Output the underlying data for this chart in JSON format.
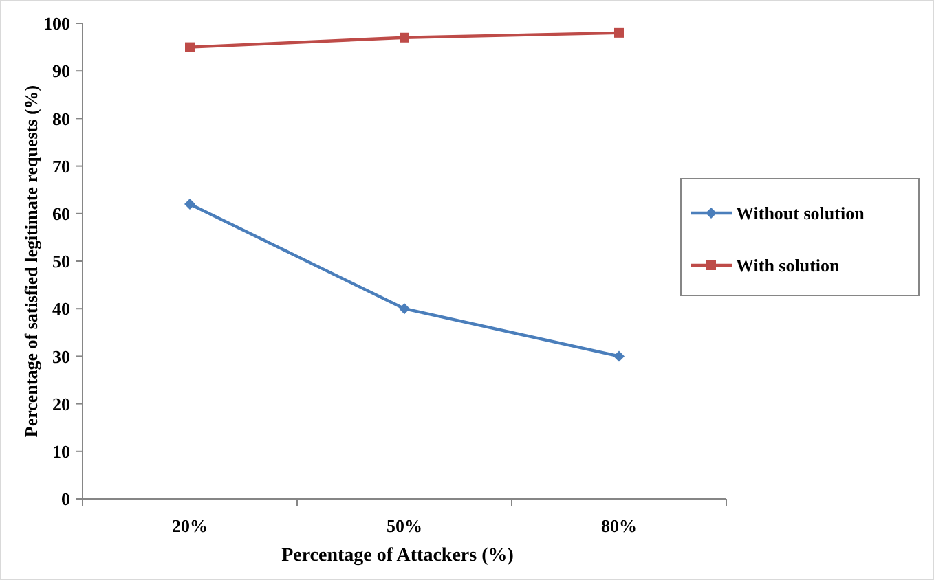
{
  "chart_data": {
    "type": "line",
    "xlabel": "Percentage of Attackers (%)",
    "ylabel": "Percentage of satisfied legitimate requests (%)",
    "categories": [
      "20%",
      "50%",
      "80%"
    ],
    "series": [
      {
        "name": "Without solution",
        "color": "#4a7ebb",
        "values": [
          62,
          40,
          30
        ],
        "marker": "diamond"
      },
      {
        "name": "With solution",
        "color": "#be4b48",
        "values": [
          95,
          97,
          98
        ],
        "marker": "square"
      }
    ],
    "ylim": [
      0,
      100
    ],
    "yticks": [
      0,
      10,
      20,
      30,
      40,
      50,
      60,
      70,
      80,
      90,
      100
    ],
    "grid": false,
    "legend": "right",
    "line_style": "solid"
  }
}
